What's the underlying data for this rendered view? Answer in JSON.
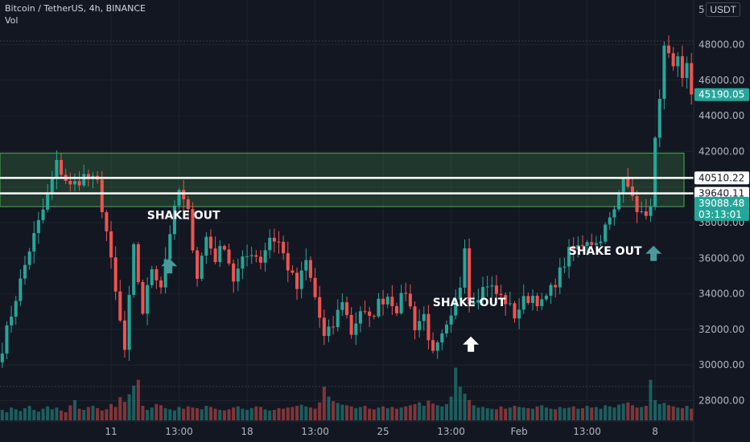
{
  "header": {
    "title": "Bitcoin / TetherUS, 4h, BINANCE",
    "volume_label": "Vol"
  },
  "axis": {
    "currency": "USDT",
    "top_partial_label": "5"
  },
  "chart_data": {
    "type": "candlestick",
    "title": "Bitcoin / TetherUS, 4h, BINANCE",
    "ylim": [
      27000,
      49000
    ],
    "y_ticks": [
      "48000.00",
      "46000.00",
      "44000.00",
      "42000.00",
      "38000.00",
      "36000.00",
      "34000.00",
      "32000.00",
      "30000.00",
      "28000.00"
    ],
    "x_ticks": [
      {
        "label": "11",
        "i": 24
      },
      {
        "label": "13:00",
        "i": 39
      },
      {
        "label": "18",
        "i": 54
      },
      {
        "label": "13:00",
        "i": 69
      },
      {
        "label": "25",
        "i": 84
      },
      {
        "label": "13:00",
        "i": 99
      },
      {
        "label": "Feb",
        "i": 114
      },
      {
        "label": "13:00",
        "i": 129
      },
      {
        "label": "8",
        "i": 144
      }
    ],
    "price_labels": [
      {
        "value": 45190.05,
        "text": "45190.05",
        "style": "teal"
      },
      {
        "value": 40510.22,
        "text": "40510.22",
        "style": "white"
      },
      {
        "value": 39640.11,
        "text": "39640.11",
        "style": "white"
      },
      {
        "value": 39088.48,
        "text": "39088.48",
        "style": "teal",
        "countdown": "03:13:01"
      }
    ],
    "zone": {
      "low": 38900,
      "high": 41900,
      "color": "#4caf50"
    },
    "levels": [
      40510.22,
      39640.11
    ],
    "annotations": [
      {
        "text": "SHAKE OUT",
        "i": 40,
        "price": 38200,
        "arrow_price": 36000
      },
      {
        "text": "SHAKE OUT",
        "i": 103,
        "price": 33300,
        "arrow_price": 31600
      },
      {
        "text": "SHAKE OUT",
        "i": 133,
        "price": 36200,
        "arrow_price": 36700
      }
    ],
    "colors": {
      "up": "#26a69a",
      "down": "#ef5350",
      "zone": "#4caf50"
    },
    "anchors": [
      [
        0,
        31000
      ],
      [
        3,
        33800
      ],
      [
        6,
        36500
      ],
      [
        9,
        38700
      ],
      [
        12,
        41300
      ],
      [
        15,
        40000
      ],
      [
        18,
        40600
      ],
      [
        21,
        40200
      ],
      [
        23,
        37500
      ],
      [
        25,
        34000
      ],
      [
        27,
        30800
      ],
      [
        29,
        36500
      ],
      [
        31,
        33000
      ],
      [
        33,
        35500
      ],
      [
        35,
        34500
      ],
      [
        37,
        37500
      ],
      [
        39,
        39800
      ],
      [
        41,
        38500
      ],
      [
        43,
        35000
      ],
      [
        45,
        37200
      ],
      [
        47,
        36000
      ],
      [
        49,
        36800
      ],
      [
        51,
        34800
      ],
      [
        53,
        35800
      ],
      [
        55,
        36400
      ],
      [
        57,
        35900
      ],
      [
        59,
        37200
      ],
      [
        61,
        36900
      ],
      [
        63,
        35500
      ],
      [
        65,
        34300
      ],
      [
        67,
        35800
      ],
      [
        69,
        33800
      ],
      [
        71,
        31500
      ],
      [
        73,
        32200
      ],
      [
        75,
        33700
      ],
      [
        77,
        31800
      ],
      [
        79,
        33100
      ],
      [
        81,
        32500
      ],
      [
        83,
        33500
      ],
      [
        85,
        33900
      ],
      [
        87,
        33200
      ],
      [
        89,
        34200
      ],
      [
        91,
        32200
      ],
      [
        93,
        32800
      ],
      [
        95,
        30500
      ],
      [
        97,
        31500
      ],
      [
        99,
        32500
      ],
      [
        101,
        34500
      ],
      [
        102,
        36900
      ],
      [
        103,
        33600
      ],
      [
        105,
        34000
      ],
      [
        107,
        34600
      ],
      [
        109,
        34000
      ],
      [
        111,
        33600
      ],
      [
        113,
        32800
      ],
      [
        115,
        33600
      ],
      [
        117,
        33900
      ],
      [
        119,
        33400
      ],
      [
        121,
        34200
      ],
      [
        123,
        35200
      ],
      [
        125,
        36300
      ],
      [
        127,
        36600
      ],
      [
        129,
        37100
      ],
      [
        131,
        36800
      ],
      [
        133,
        37700
      ],
      [
        135,
        38600
      ],
      [
        137,
        40800
      ],
      [
        138,
        40300
      ],
      [
        139,
        39200
      ],
      [
        141,
        38500
      ],
      [
        142,
        38100
      ],
      [
        143,
        39200
      ],
      [
        144,
        42500
      ],
      [
        145,
        44700
      ],
      [
        146,
        47600
      ],
      [
        147,
        47200
      ],
      [
        148,
        46600
      ],
      [
        149,
        47400
      ],
      [
        150,
        46300
      ],
      [
        151,
        46800
      ],
      [
        152,
        45200
      ]
    ],
    "volumes": [
      18,
      14,
      22,
      19,
      16,
      21,
      25,
      18,
      15,
      20,
      24,
      19,
      22,
      17,
      14,
      26,
      35,
      20,
      18,
      23,
      25,
      21,
      17,
      19,
      28,
      23,
      40,
      32,
      45,
      60,
      70,
      25,
      18,
      22,
      28,
      26,
      21,
      19,
      17,
      23,
      20,
      24,
      22,
      21,
      19,
      25,
      23,
      20,
      18,
      17,
      19,
      22,
      24,
      20,
      18,
      21,
      24,
      23,
      19,
      17,
      18,
      21,
      20,
      22,
      23,
      25,
      27,
      24,
      22,
      20,
      31,
      58,
      41,
      33,
      30,
      27,
      26,
      24,
      21,
      23,
      25,
      20,
      19,
      22,
      24,
      21,
      23,
      20,
      22,
      24,
      26,
      28,
      31,
      25,
      34,
      29,
      26,
      24,
      28,
      41,
      91,
      58,
      46,
      35,
      26,
      22,
      23,
      21,
      20,
      19,
      24,
      20,
      22,
      25,
      23,
      22,
      21,
      20,
      24,
      26,
      22,
      20,
      19,
      23,
      21,
      22,
      24,
      20,
      21,
      25,
      22,
      23,
      20,
      26,
      24,
      22,
      27,
      29,
      31,
      26,
      22,
      23,
      25,
      70,
      35,
      28,
      30,
      26,
      24,
      22,
      21,
      25
    ]
  }
}
